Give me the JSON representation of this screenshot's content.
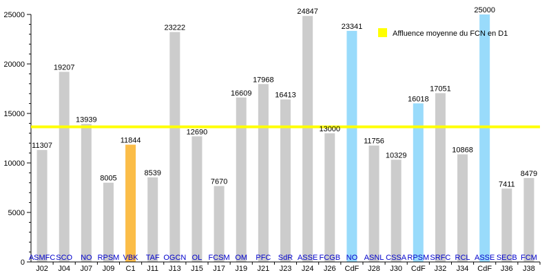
{
  "chart_data": {
    "type": "bar",
    "title": "",
    "xlabel": "",
    "ylabel": "",
    "ylim": [
      0,
      25000
    ],
    "yticks": [
      0,
      5000,
      10000,
      15000,
      20000,
      25000
    ],
    "grid": false,
    "legend_position": "top-right",
    "categories": [
      "J02",
      "J04",
      "J07",
      "J09",
      "C1",
      "J11",
      "J13",
      "J15",
      "J17",
      "J19",
      "J21",
      "J23",
      "J24",
      "J26",
      "CdF",
      "J28",
      "J30",
      "CdF",
      "J32",
      "J34",
      "CdF",
      "J36",
      "J38"
    ],
    "opponents": [
      "ASMFC",
      "SCO",
      "NO",
      "RPSM",
      "VBK",
      "TAF",
      "OGCN",
      "OL",
      "FCSM",
      "OM",
      "PFC",
      "SdR",
      "ASSE",
      "FCGB",
      "NO",
      "ASNL",
      "CSSA",
      "RPSM",
      "SRFC",
      "RCL",
      "ASSE",
      "SECB",
      "FCM"
    ],
    "values": [
      11307,
      19207,
      13939,
      8005,
      11844,
      8539,
      23222,
      12690,
      7670,
      16609,
      17968,
      16413,
      24847,
      13000,
      23341,
      11756,
      10329,
      16018,
      17051,
      10868,
      25000,
      7411,
      8479
    ],
    "bar_colors": [
      "#cccccc",
      "#cccccc",
      "#cccccc",
      "#cccccc",
      "#fbbd48",
      "#cccccc",
      "#cccccc",
      "#cccccc",
      "#cccccc",
      "#cccccc",
      "#cccccc",
      "#cccccc",
      "#cccccc",
      "#cccccc",
      "#99dbfb",
      "#cccccc",
      "#cccccc",
      "#99dbfb",
      "#cccccc",
      "#cccccc",
      "#99dbfb",
      "#cccccc",
      "#cccccc"
    ],
    "reference_line": {
      "name": "Affluence moyenne du FCN en D1",
      "value": 13650,
      "color": "#ffff00"
    },
    "opponent_label_color": "#0000cc",
    "text_color": "#000000"
  }
}
